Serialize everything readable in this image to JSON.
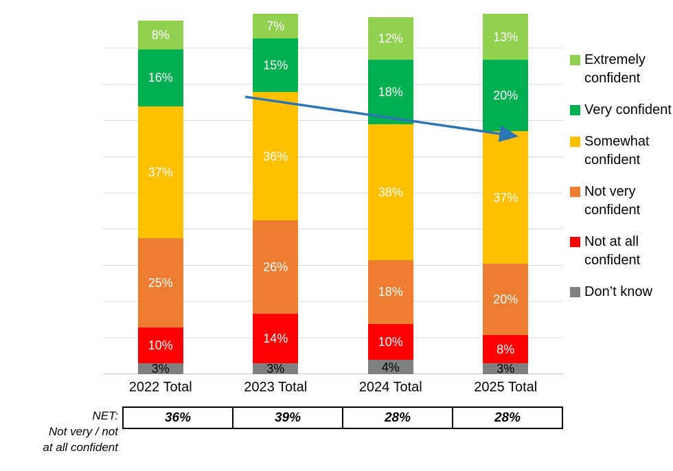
{
  "chart_data": {
    "type": "bar",
    "stacked": true,
    "title": "",
    "xlabel": "",
    "ylabel": "",
    "grid": true,
    "legend_position": "right",
    "value_suffix": "%",
    "categories": [
      "2022 Total",
      "2023 Total",
      "2024 Total",
      "2025 Total"
    ],
    "series": [
      {
        "name": "Extremely confident",
        "color": "#92D050",
        "label_color": "#FFFFFF",
        "values": [
          8,
          7,
          12,
          13
        ]
      },
      {
        "name": "Very confident",
        "color": "#00B050",
        "label_color": "#FFFFFF",
        "values": [
          16,
          15,
          18,
          20
        ]
      },
      {
        "name": "Somewhat confident",
        "color": "#FFC000",
        "label_color": "#FFFFFF",
        "values": [
          37,
          36,
          38,
          37
        ]
      },
      {
        "name": "Not very confident",
        "color": "#ED7D31",
        "label_color": "#FFFFFF",
        "values": [
          25,
          26,
          18,
          20
        ]
      },
      {
        "name": "Not at all confident",
        "color": "#FF0000",
        "label_color": "#FFFFFF",
        "values": [
          10,
          14,
          10,
          8
        ]
      },
      {
        "name": "Don’t know",
        "color": "#808080",
        "label_color": "#000000",
        "values": [
          3,
          3,
          4,
          3
        ]
      }
    ],
    "net_row": {
      "label": [
        "NET:",
        "Not very / not",
        "at all confident"
      ],
      "values": [
        "36%",
        "39%",
        "28%",
        "28%"
      ]
    },
    "annotations": [
      {
        "type": "trend-arrow",
        "color": "#2E75B6",
        "direction": "down-right"
      }
    ]
  }
}
